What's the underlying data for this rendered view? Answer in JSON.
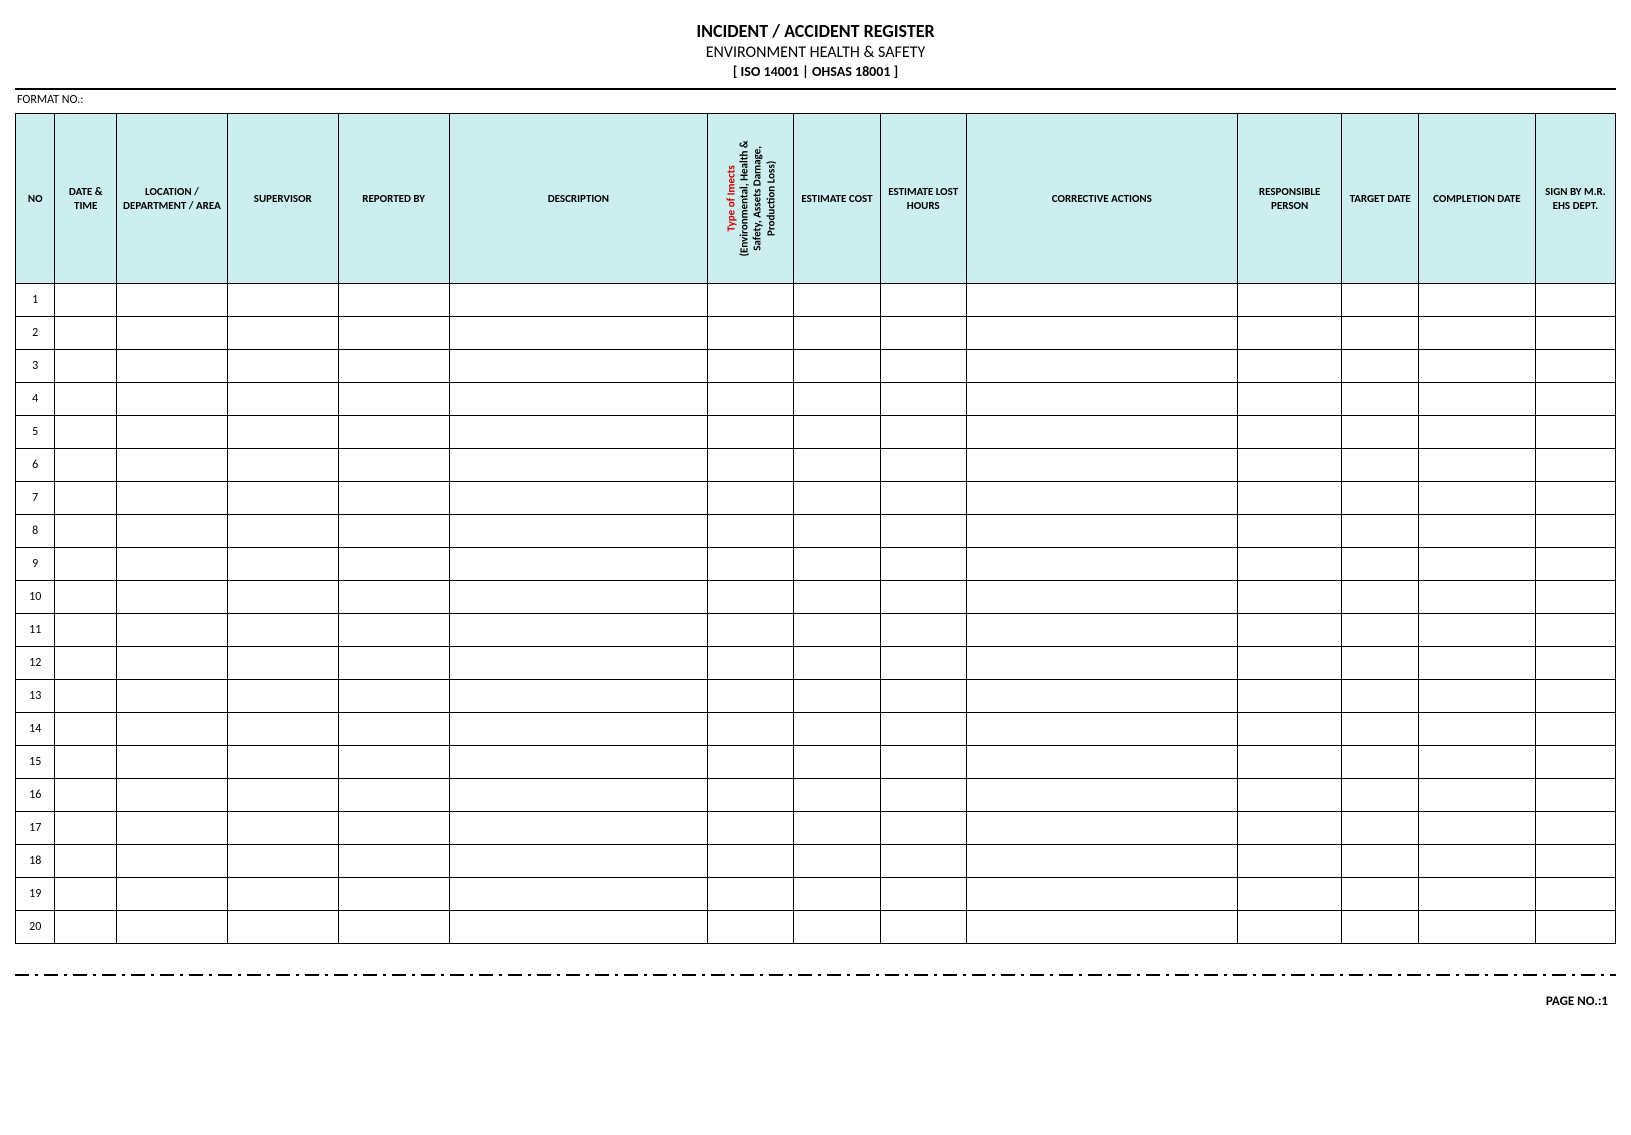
{
  "header": {
    "title": "INCIDENT / ACCIDENT REGISTER",
    "subtitle": "ENVIRONMENT HEALTH & SAFETY",
    "iso": "[ ISO 14001 | OHSAS 18001 ]"
  },
  "format_label": "FORMAT NO.:",
  "columns": [
    {
      "key": "no",
      "label": "NO",
      "class": "col-no"
    },
    {
      "key": "date",
      "label": "DATE & TIME",
      "class": "col-date"
    },
    {
      "key": "loc",
      "label": "LOCATION / DEPARTMENT / AREA",
      "class": "col-loc"
    },
    {
      "key": "sup",
      "label": "SUPERVISOR",
      "class": "col-sup"
    },
    {
      "key": "rep",
      "label": "REPORTED BY",
      "class": "col-rep"
    },
    {
      "key": "desc",
      "label": "DESCRIPTION",
      "class": "col-desc"
    },
    {
      "key": "type",
      "label_red": "Type of Imects",
      "label_black": "(Environmental, Health & Safety, Assets Damage, Production Loss)",
      "class": "col-type",
      "rotated": true
    },
    {
      "key": "cost",
      "label": "ESTIMATE COST",
      "class": "col-cost"
    },
    {
      "key": "hours",
      "label": "ESTIMATE LOST HOURS",
      "class": "col-hours"
    },
    {
      "key": "corr",
      "label": "CORRECTIVE ACTIONS",
      "class": "col-corr"
    },
    {
      "key": "resp",
      "label": "RESPONSIBLE PERSON",
      "class": "col-resp"
    },
    {
      "key": "tgt",
      "label": "TARGET DATE",
      "class": "col-tgt"
    },
    {
      "key": "comp",
      "label": "COMPLETION DATE",
      "class": "col-comp"
    },
    {
      "key": "sign",
      "label": "SIGN BY M.R. EHS DEPT.",
      "class": "col-sign"
    }
  ],
  "row_count": 20,
  "row_numbers": [
    "1",
    "2",
    "3",
    "4",
    "5",
    "6",
    "7",
    "8",
    "9",
    "10",
    "11",
    "12",
    "13",
    "14",
    "15",
    "16",
    "17",
    "18",
    "19",
    "20"
  ],
  "footer": {
    "page_label": "PAGE NO.:1"
  },
  "styling": {
    "header_bg": "#cceeee",
    "border_color": "#000000",
    "page_bg": "#ffffff",
    "title_fontsize": 18,
    "subtitle_fontsize": 16,
    "iso_fontsize": 14,
    "th_fontsize": 11,
    "td_height": 33,
    "th_height": 170,
    "type_red_color": "#cc0000"
  }
}
